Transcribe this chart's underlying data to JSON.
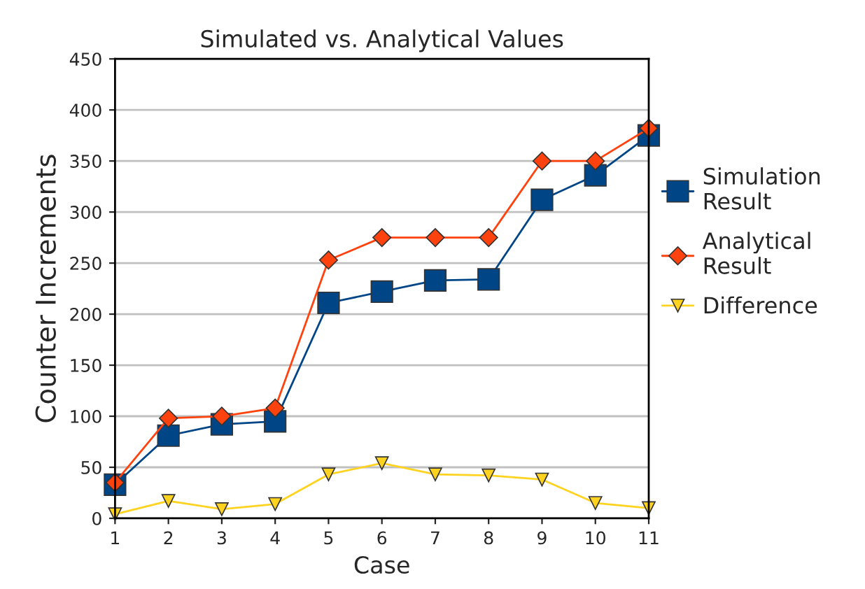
{
  "chart_data": {
    "type": "line",
    "title": "Simulated vs. Analytical Values",
    "xlabel": "Case",
    "ylabel": "Counter Increments",
    "categories": [
      "1",
      "2",
      "3",
      "4",
      "5",
      "6",
      "7",
      "8",
      "9",
      "10",
      "11"
    ],
    "series": [
      {
        "name": "Simulation Result",
        "color": "#004586",
        "marker": "square",
        "values": [
          33,
          81,
          92,
          95,
          211,
          222,
          233,
          234,
          312,
          336,
          375
        ]
      },
      {
        "name": "Analytical Result",
        "color": "#ff420e",
        "marker": "diamond",
        "values": [
          35,
          98,
          100,
          108,
          253,
          275,
          275,
          275,
          350,
          350,
          382
        ]
      },
      {
        "name": "Difference",
        "color": "#ffd320",
        "marker": "triangle",
        "values": [
          4,
          17,
          9,
          14,
          43,
          54,
          43,
          42,
          38,
          15,
          10
        ]
      }
    ],
    "ylim": [
      0,
      450
    ],
    "yticks": [
      0,
      50,
      100,
      150,
      200,
      250,
      300,
      350,
      400,
      450
    ],
    "grid": "y",
    "legend": "right",
    "line_style": "solid"
  }
}
